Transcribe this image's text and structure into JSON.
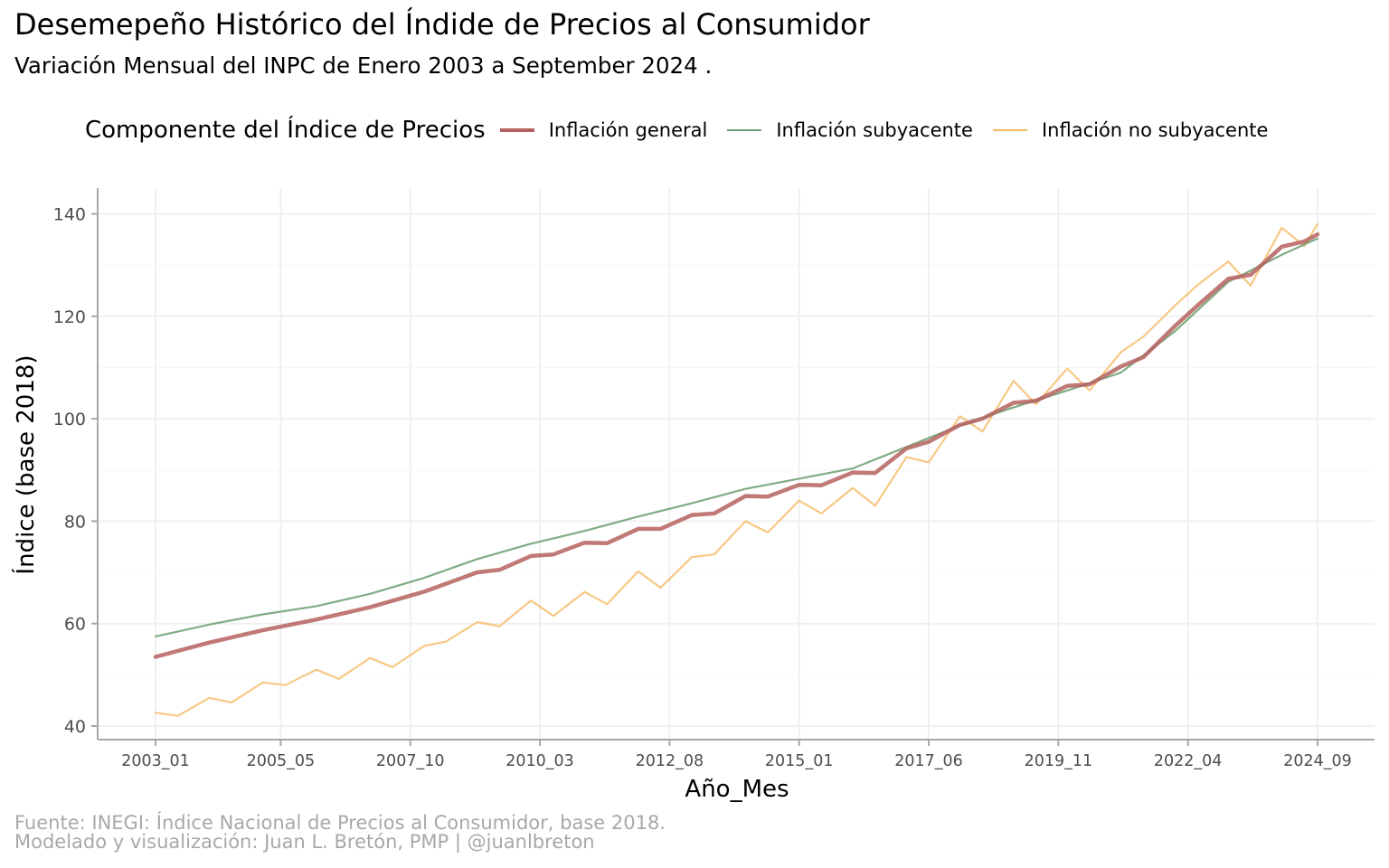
{
  "title": "Desemepeño Histórico del Índide de Precios al Consumidor",
  "subtitle": "Variación Mensual del INPC de Enero 2003 a September 2024 .",
  "legend": {
    "title": "Componente del Índice de Precios",
    "items": [
      {
        "label": "Inflación general",
        "color": "#b5625f"
      },
      {
        "label": "Inflación subyacente",
        "color": "#6b9e6f"
      },
      {
        "label": "Inflación no subyacente",
        "color": "#f5b65c"
      }
    ]
  },
  "caption": {
    "line1": "Fuente: INEGI: Índice Nacional de Precios al Consumidor, base 2018.",
    "line2": "Modelado y visualización: Juan L. Bretón, PMP | @juanlbreton"
  },
  "chart_data": {
    "type": "line",
    "xlabel": "Año_Mes",
    "ylabel": "Índice  (base 2018)",
    "ylim": [
      37,
      145
    ],
    "yticks": [
      40,
      60,
      80,
      100,
      120,
      140
    ],
    "x_start": "2003_01",
    "x_end": "2024_09",
    "xticks": [
      "2003_01",
      "2005_05",
      "2007_10",
      "2010_03",
      "2012_08",
      "2015_01",
      "2017_06",
      "2019_11",
      "2022_04",
      "2024_09"
    ],
    "grid": true,
    "legend_position": "top",
    "series": [
      {
        "name": "Inflación general",
        "points": [
          [
            "2003_01",
            53.5
          ],
          [
            "2004_01",
            56.3
          ],
          [
            "2005_01",
            58.7
          ],
          [
            "2006_01",
            60.8
          ],
          [
            "2007_01",
            63.2
          ],
          [
            "2008_01",
            66.2
          ],
          [
            "2009_01",
            70.0
          ],
          [
            "2009_06",
            70.5
          ],
          [
            "2010_01",
            73.2
          ],
          [
            "2010_06",
            73.5
          ],
          [
            "2011_01",
            75.8
          ],
          [
            "2011_06",
            75.7
          ],
          [
            "2012_01",
            78.5
          ],
          [
            "2012_06",
            78.5
          ],
          [
            "2013_01",
            81.2
          ],
          [
            "2013_06",
            81.5
          ],
          [
            "2014_01",
            84.9
          ],
          [
            "2014_06",
            84.8
          ],
          [
            "2015_01",
            87.1
          ],
          [
            "2015_06",
            87.0
          ],
          [
            "2016_01",
            89.5
          ],
          [
            "2016_06",
            89.4
          ],
          [
            "2017_01",
            94.2
          ],
          [
            "2017_06",
            95.5
          ],
          [
            "2018_01",
            98.8
          ],
          [
            "2018_06",
            100.0
          ],
          [
            "2019_01",
            103.1
          ],
          [
            "2019_06",
            103.5
          ],
          [
            "2020_01",
            106.4
          ],
          [
            "2020_06",
            106.7
          ],
          [
            "2021_01",
            110.2
          ],
          [
            "2021_06",
            112.0
          ],
          [
            "2022_01",
            118.0
          ],
          [
            "2022_06",
            122.0
          ],
          [
            "2023_01",
            127.3
          ],
          [
            "2023_06",
            128.1
          ],
          [
            "2024_01",
            133.6
          ],
          [
            "2024_06",
            134.6
          ],
          [
            "2024_09",
            136.0
          ]
        ]
      },
      {
        "name": "Inflación subyacente",
        "points": [
          [
            "2003_01",
            57.5
          ],
          [
            "2004_01",
            59.8
          ],
          [
            "2005_01",
            61.8
          ],
          [
            "2006_01",
            63.4
          ],
          [
            "2007_01",
            65.8
          ],
          [
            "2008_01",
            68.9
          ],
          [
            "2009_01",
            72.6
          ],
          [
            "2010_01",
            75.6
          ],
          [
            "2011_01",
            78.1
          ],
          [
            "2012_01",
            80.9
          ],
          [
            "2013_01",
            83.5
          ],
          [
            "2014_01",
            86.3
          ],
          [
            "2015_01",
            88.3
          ],
          [
            "2016_01",
            90.3
          ],
          [
            "2017_01",
            94.5
          ],
          [
            "2018_01",
            98.7
          ],
          [
            "2019_01",
            102.2
          ],
          [
            "2020_01",
            105.5
          ],
          [
            "2021_01",
            109.0
          ],
          [
            "2022_01",
            117.0
          ],
          [
            "2023_01",
            126.7
          ],
          [
            "2024_01",
            132.0
          ],
          [
            "2024_09",
            135.2
          ]
        ]
      },
      {
        "name": "Inflación no subyacente",
        "points": [
          [
            "2003_01",
            42.6
          ],
          [
            "2003_06",
            42.0
          ],
          [
            "2004_01",
            45.5
          ],
          [
            "2004_06",
            44.6
          ],
          [
            "2005_01",
            48.5
          ],
          [
            "2005_06",
            48.0
          ],
          [
            "2006_01",
            51.0
          ],
          [
            "2006_06",
            49.2
          ],
          [
            "2007_01",
            53.3
          ],
          [
            "2007_06",
            51.5
          ],
          [
            "2008_01",
            55.6
          ],
          [
            "2008_06",
            56.5
          ],
          [
            "2009_01",
            60.3
          ],
          [
            "2009_06",
            59.5
          ],
          [
            "2010_01",
            64.5
          ],
          [
            "2010_06",
            61.5
          ],
          [
            "2011_01",
            66.2
          ],
          [
            "2011_06",
            63.8
          ],
          [
            "2012_01",
            70.2
          ],
          [
            "2012_06",
            67.0
          ],
          [
            "2013_01",
            73.0
          ],
          [
            "2013_06",
            73.5
          ],
          [
            "2014_01",
            80.0
          ],
          [
            "2014_06",
            77.8
          ],
          [
            "2015_01",
            84.0
          ],
          [
            "2015_06",
            81.5
          ],
          [
            "2016_01",
            86.5
          ],
          [
            "2016_06",
            83.0
          ],
          [
            "2017_01",
            92.5
          ],
          [
            "2017_06",
            91.5
          ],
          [
            "2018_01",
            100.5
          ],
          [
            "2018_06",
            97.5
          ],
          [
            "2019_01",
            107.4
          ],
          [
            "2019_06",
            102.8
          ],
          [
            "2020_01",
            109.8
          ],
          [
            "2020_06",
            105.5
          ],
          [
            "2021_01",
            113.0
          ],
          [
            "2021_06",
            116.0
          ],
          [
            "2022_01",
            122.0
          ],
          [
            "2022_06",
            126.0
          ],
          [
            "2023_01",
            130.7
          ],
          [
            "2023_06",
            126.0
          ],
          [
            "2024_01",
            137.3
          ],
          [
            "2024_06",
            133.7
          ],
          [
            "2024_09",
            138.0
          ]
        ]
      }
    ]
  }
}
